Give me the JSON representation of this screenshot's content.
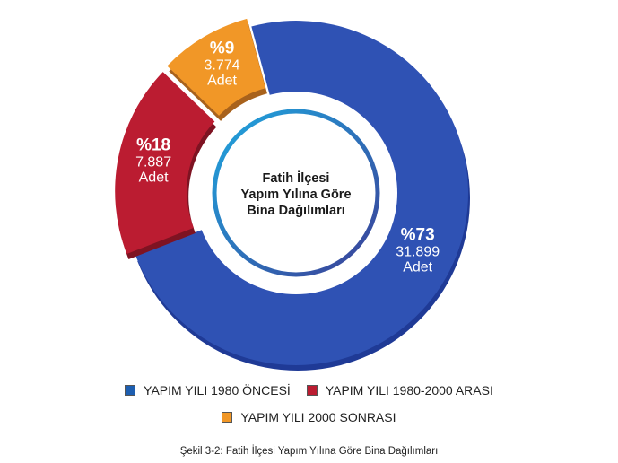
{
  "chart_data": {
    "type": "pie",
    "title": "Fatih İlçesi Yapım Yılına Göre Bina Dağılımları",
    "center_title_lines": [
      "Fatih İlçesi",
      "Yapım Yılına Göre",
      "Bina Dağılımları"
    ],
    "slices": [
      {
        "name": "YAPIM YILI 1980 ÖNCESİ",
        "percent_label": "%73",
        "count_label": "31.899",
        "unit": "Adet",
        "value": 31899,
        "color": "#2f52b4",
        "color_dark": "#1f3a96",
        "exploded": false
      },
      {
        "name": "YAPIM YILI 1980-2000 ARASI",
        "percent_label": "%18",
        "count_label": "7.887",
        "unit": "Adet",
        "value": 7887,
        "color": "#bb1c31",
        "color_dark": "#7e1322",
        "exploded": true
      },
      {
        "name": "YAPIM YILI 2000 SONRASI",
        "percent_label": "%9",
        "count_label": "3.774",
        "unit": "Adet",
        "value": 3774,
        "color": "#f19727",
        "color_dark": "#a8621c",
        "exploded": true
      }
    ],
    "legend_position": "bottom"
  },
  "caption": "Şekil 3-2: Fatih İlçesi Yapım Yılına Göre Bina Dağılımları"
}
